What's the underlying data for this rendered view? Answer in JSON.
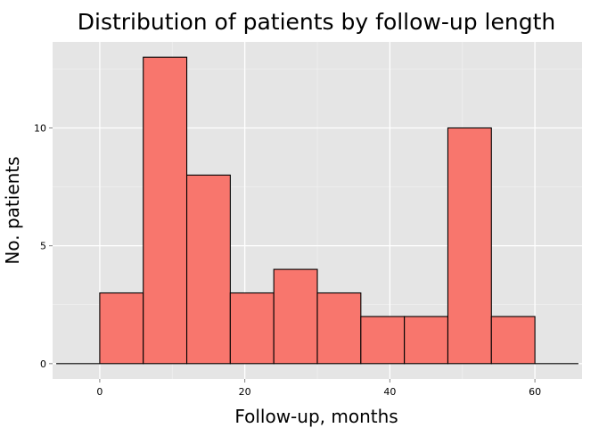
{
  "chart_data": {
    "type": "bar",
    "title": "Distribution of patients by follow-up length",
    "xlabel": "Follow-up, months",
    "ylabel": "No. patients",
    "xlim": [
      -6.5,
      66.5
    ],
    "ylim": [
      -0.65,
      13.65
    ],
    "x_ticks": [
      0,
      20,
      40,
      60
    ],
    "y_ticks": [
      0,
      5,
      10
    ],
    "bin_width": 6,
    "bins": [
      {
        "start": -6,
        "end": 0,
        "count": 0
      },
      {
        "start": 0,
        "end": 6,
        "count": 3
      },
      {
        "start": 6,
        "end": 12,
        "count": 13
      },
      {
        "start": 12,
        "end": 18,
        "count": 8
      },
      {
        "start": 18,
        "end": 24,
        "count": 3
      },
      {
        "start": 24,
        "end": 30,
        "count": 4
      },
      {
        "start": 30,
        "end": 36,
        "count": 3
      },
      {
        "start": 36,
        "end": 42,
        "count": 2
      },
      {
        "start": 42,
        "end": 48,
        "count": 2
      },
      {
        "start": 48,
        "end": 54,
        "count": 10
      },
      {
        "start": 54,
        "end": 60,
        "count": 2
      },
      {
        "start": 60,
        "end": 66,
        "count": 0
      }
    ],
    "grid": true,
    "bar_fill": "#f8766d",
    "bar_stroke": "#000000",
    "panel_background": "#e5e5e5",
    "grid_color": "#ffffff"
  }
}
